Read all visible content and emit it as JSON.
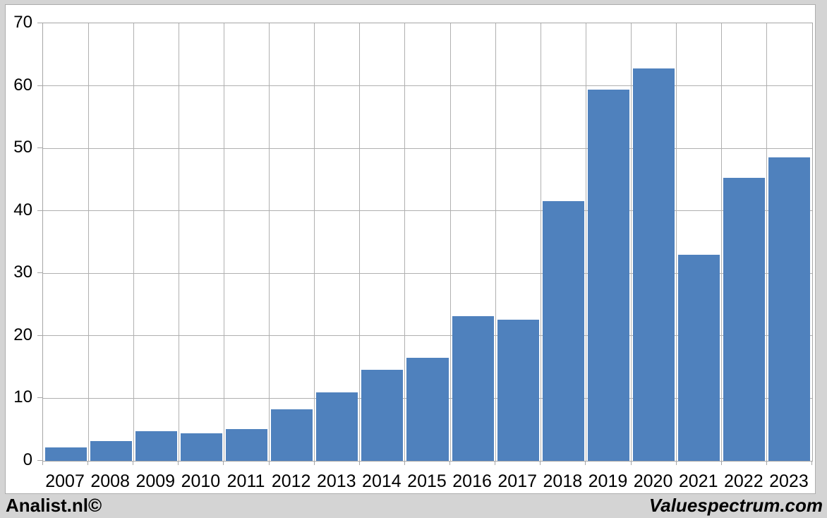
{
  "chart_data": {
    "type": "bar",
    "title": "",
    "xlabel": "",
    "ylabel": "",
    "categories": [
      "2007",
      "2008",
      "2009",
      "2010",
      "2011",
      "2012",
      "2013",
      "2014",
      "2015",
      "2016",
      "2017",
      "2018",
      "2019",
      "2020",
      "2021",
      "2022",
      "2023"
    ],
    "values": [
      2.2,
      3.2,
      4.8,
      4.4,
      5.1,
      8.2,
      11.0,
      14.6,
      16.5,
      23.1,
      22.6,
      41.6,
      59.4,
      62.8,
      33.0,
      45.3,
      48.6
    ],
    "ylim": [
      0,
      70
    ],
    "ytick_interval": 10,
    "yticks": [
      0,
      10,
      20,
      30,
      40,
      50,
      60,
      70
    ],
    "grid": true,
    "legend": false,
    "bar_color": "#4f81bd",
    "gridline_color": "#b0b0b0",
    "axis_color": "#a6a6a6",
    "plot_background": "#ffffff",
    "page_background": "#d4d4d4"
  },
  "footer": {
    "left_text": "Analist.nl©",
    "right_text": "Valuespectrum.com"
  }
}
